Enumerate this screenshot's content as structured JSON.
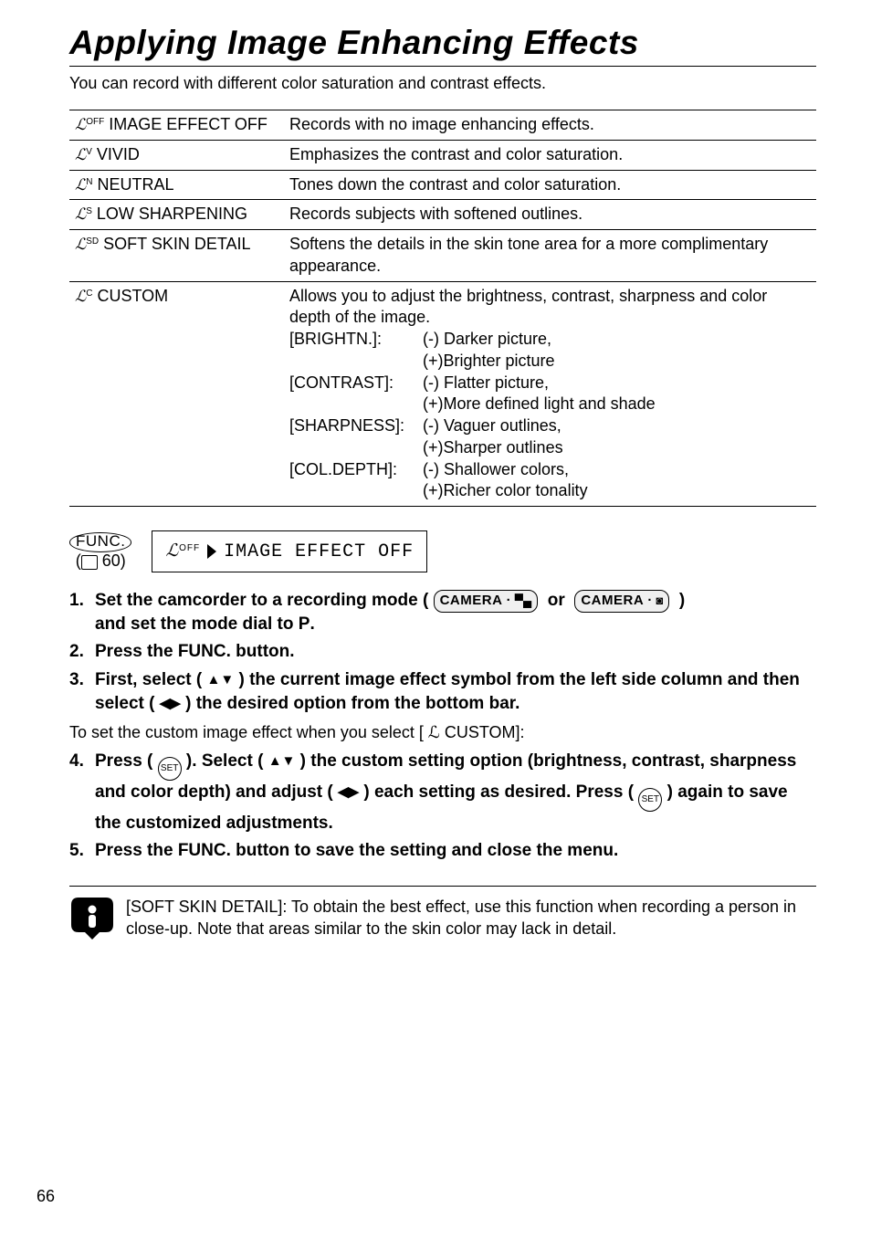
{
  "title": "Applying Image Enhancing Effects",
  "intro": "You can record with different color saturation and contrast effects.",
  "table": [
    {
      "glyph": "ℒ",
      "sup": "OFF",
      "label": "IMAGE EFFECT OFF",
      "desc": "Records with no image enhancing effects."
    },
    {
      "glyph": "ℒ",
      "sup": "V",
      "label": "VIVID",
      "desc": "Emphasizes the contrast and color saturation."
    },
    {
      "glyph": "ℒ",
      "sup": "N",
      "label": "NEUTRAL",
      "desc": "Tones down the contrast and color saturation."
    },
    {
      "glyph": "ℒ",
      "sup": "S",
      "label": "LOW SHARPENING",
      "desc": "Records subjects with softened outlines."
    },
    {
      "glyph": "ℒ",
      "sup": "SD",
      "label": "SOFT SKIN DETAIL",
      "desc": "Softens the details in the skin tone area for a more complimentary appearance."
    }
  ],
  "custom": {
    "glyph": "ℒ",
    "sup": "C",
    "label": "CUSTOM",
    "lead": "Allows you to adjust the brightness, contrast, sharpness and color depth of the image.",
    "items": [
      {
        "k": "[BRIGHTN.]:",
        "v1": "(-) Darker picture,",
        "v2": "(+)Brighter picture"
      },
      {
        "k": "[CONTRAST]:",
        "v1": "(-) Flatter picture,",
        "v2": "(+)More defined light and shade"
      },
      {
        "k": "[SHARPNESS]:",
        "v1": "(-) Vaguer outlines,",
        "v2": "(+)Sharper outlines"
      },
      {
        "k": "[COL.DEPTH]:",
        "v1": "(-) Shallower colors,",
        "v2": "(+)Richer color tonality"
      }
    ]
  },
  "func": {
    "label": "FUNC.",
    "page": "60",
    "off_sup": "OFF",
    "box_text": "IMAGE EFFECT OFF"
  },
  "steps_a": [
    "Set the camcorder to a recording mode (",
    "and set the mode dial to ",
    "Press the FUNC. button.",
    "First, select ( ",
    " ) the current image effect symbol from the left side column and then select ( ",
    " ) the desired option from the bottom bar."
  ],
  "mid_text": "To set the custom image effect when you select [ ℒ  CUSTOM]:",
  "steps_b": [
    "Press ( ",
    " ). Select ( ",
    " ) the custom setting option (brightness, contrast, sharpness and color depth) and adjust ( ",
    " ) each setting as desired. Press ( ",
    " ) again to save the customized adjustments.",
    "Press the FUNC. button to save the setting and close the menu."
  ],
  "pill": {
    "camera": "CAMERA",
    "or": "or"
  },
  "caution": "[SOFT SKIN DETAIL]: To obtain the best effect, use this function when recording a person in close-up. Note that areas similar to the skin color may lack in detail.",
  "page_number": "66",
  "set_label": "SET",
  "p_glyph": "P",
  "dot": "."
}
